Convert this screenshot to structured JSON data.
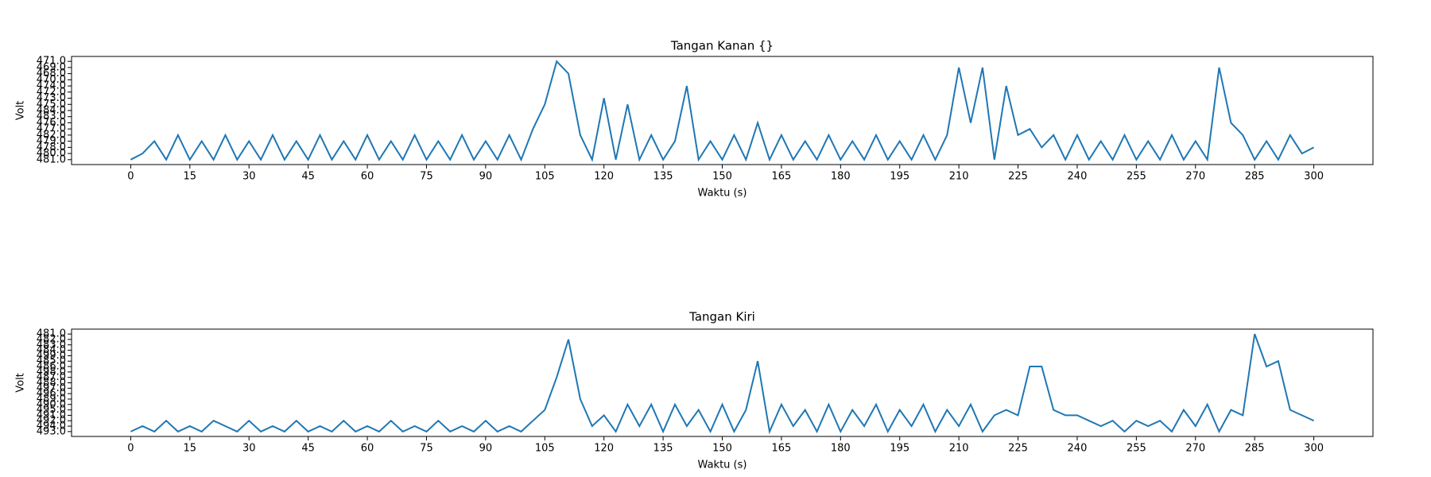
{
  "chart_data": [
    {
      "type": "line",
      "title": "Tangan Kanan {}",
      "xlabel": "Waktu (s)",
      "ylabel": "Volt",
      "color": "#1f77b4",
      "xlim": [
        -15,
        315
      ],
      "xticks": [
        0,
        15,
        30,
        45,
        60,
        75,
        90,
        105,
        120,
        135,
        150,
        165,
        180,
        195,
        210,
        225,
        240,
        255,
        270,
        285,
        300
      ],
      "ylim": [
        -0.8,
        16.8
      ],
      "yticks": [
        {
          "value": 0,
          "label": "481.0"
        },
        {
          "value": 1,
          "label": "480.0"
        },
        {
          "value": 2,
          "label": "478.0"
        },
        {
          "value": 3,
          "label": "479.0"
        },
        {
          "value": 4,
          "label": "482.0"
        },
        {
          "value": 5,
          "label": "477.0"
        },
        {
          "value": 6,
          "label": "476.0"
        },
        {
          "value": 7,
          "label": "483.0"
        },
        {
          "value": 8,
          "label": "484.0"
        },
        {
          "value": 9,
          "label": "475.0"
        },
        {
          "value": 10,
          "label": "473.0"
        },
        {
          "value": 11,
          "label": "472.0"
        },
        {
          "value": 12,
          "label": "474.0"
        },
        {
          "value": 13,
          "label": "470.0"
        },
        {
          "value": 14,
          "label": "468.0"
        },
        {
          "value": 15,
          "label": "469.0"
        },
        {
          "value": 16,
          "label": "471.0"
        }
      ],
      "x": [
        0,
        3,
        6,
        9,
        12,
        15,
        18,
        21,
        24,
        27,
        30,
        33,
        36,
        39,
        42,
        45,
        48,
        51,
        54,
        57,
        60,
        63,
        66,
        69,
        72,
        75,
        78,
        81,
        84,
        87,
        90,
        93,
        96,
        99,
        102,
        105,
        108,
        111,
        114,
        117,
        120,
        123,
        126,
        129,
        132,
        135,
        138,
        141,
        144,
        147,
        150,
        153,
        156,
        159,
        162,
        165,
        168,
        171,
        174,
        177,
        180,
        183,
        186,
        189,
        192,
        195,
        198,
        201,
        204,
        207,
        210,
        213,
        216,
        219,
        222,
        225,
        228,
        231,
        234,
        237,
        240,
        243,
        246,
        249,
        252,
        255,
        258,
        261,
        264,
        267,
        270,
        273,
        276,
        279,
        282,
        285,
        288,
        291,
        294,
        297,
        300
      ],
      "values": [
        0,
        1,
        3,
        0,
        4,
        0,
        3,
        0,
        4,
        0,
        3,
        0,
        4,
        0,
        3,
        0,
        4,
        0,
        3,
        0,
        4,
        0,
        3,
        0,
        4,
        0,
        3,
        0,
        4,
        0,
        3,
        0,
        4,
        0,
        5,
        9,
        16,
        14,
        4,
        0,
        10,
        0,
        9,
        0,
        4,
        0,
        3,
        12,
        0,
        3,
        0,
        4,
        0,
        6,
        0,
        4,
        0,
        3,
        0,
        4,
        0,
        3,
        0,
        4,
        0,
        3,
        0,
        4,
        0,
        4,
        15,
        6,
        15,
        0,
        12,
        4,
        5,
        2,
        4,
        0,
        4,
        0,
        3,
        0,
        4,
        0,
        3,
        0,
        4,
        0,
        3,
        0,
        15,
        6,
        4,
        0,
        3,
        0,
        4,
        1,
        2
      ]
    },
    {
      "type": "line",
      "title": "Tangan Kiri",
      "xlabel": "Waktu (s)",
      "ylabel": "Volt",
      "color": "#1f77b4",
      "xlim": [
        -15,
        315
      ],
      "xticks": [
        0,
        15,
        30,
        45,
        60,
        75,
        90,
        105,
        120,
        135,
        150,
        165,
        180,
        195,
        210,
        225,
        240,
        255,
        270,
        285,
        300
      ],
      "ylim": [
        -0.9,
        18.9
      ],
      "yticks": [
        {
          "value": 0,
          "label": "493.0"
        },
        {
          "value": 1,
          "label": "494.0"
        },
        {
          "value": 2,
          "label": "492.0"
        },
        {
          "value": 3,
          "label": "491.0"
        },
        {
          "value": 4,
          "label": "495.0"
        },
        {
          "value": 5,
          "label": "490.0"
        },
        {
          "value": 6,
          "label": "489.0"
        },
        {
          "value": 7,
          "label": "496.0"
        },
        {
          "value": 8,
          "label": "497.0"
        },
        {
          "value": 9,
          "label": "488.0"
        },
        {
          "value": 10,
          "label": "487.0"
        },
        {
          "value": 11,
          "label": "498.0"
        },
        {
          "value": 12,
          "label": "486.0"
        },
        {
          "value": 13,
          "label": "485.0"
        },
        {
          "value": 14,
          "label": "499.0"
        },
        {
          "value": 15,
          "label": "484.0"
        },
        {
          "value": 16,
          "label": "483.0"
        },
        {
          "value": 17,
          "label": "482.0"
        },
        {
          "value": 18,
          "label": "481.0"
        }
      ],
      "x": [
        0,
        3,
        6,
        9,
        12,
        15,
        18,
        21,
        24,
        27,
        30,
        33,
        36,
        39,
        42,
        45,
        48,
        51,
        54,
        57,
        60,
        63,
        66,
        69,
        72,
        75,
        78,
        81,
        84,
        87,
        90,
        93,
        96,
        99,
        102,
        105,
        108,
        111,
        114,
        117,
        120,
        123,
        126,
        129,
        132,
        135,
        138,
        141,
        144,
        147,
        150,
        153,
        156,
        159,
        162,
        165,
        168,
        171,
        174,
        177,
        180,
        183,
        186,
        189,
        192,
        195,
        198,
        201,
        204,
        207,
        210,
        213,
        216,
        219,
        222,
        225,
        228,
        231,
        234,
        237,
        240,
        243,
        246,
        249,
        252,
        255,
        258,
        261,
        264,
        267,
        270,
        273,
        276,
        279,
        282,
        285,
        288,
        291,
        294,
        297,
        300
      ],
      "values": [
        0,
        1,
        0,
        2,
        0,
        1,
        0,
        2,
        1,
        0,
        2,
        0,
        1,
        0,
        2,
        0,
        1,
        0,
        2,
        0,
        1,
        0,
        2,
        0,
        1,
        0,
        2,
        0,
        1,
        0,
        2,
        0,
        1,
        0,
        2,
        4,
        10,
        17,
        6,
        1,
        3,
        0,
        5,
        1,
        5,
        0,
        5,
        1,
        4,
        0,
        5,
        0,
        4,
        13,
        0,
        5,
        1,
        4,
        0,
        5,
        0,
        4,
        1,
        5,
        0,
        4,
        1,
        5,
        0,
        4,
        1,
        5,
        0,
        3,
        4,
        3,
        12,
        12,
        4,
        3,
        3,
        2,
        1,
        2,
        0,
        2,
        1,
        2,
        0,
        4,
        1,
        5,
        0,
        4,
        3,
        18,
        12,
        13,
        4,
        3,
        2
      ]
    }
  ]
}
